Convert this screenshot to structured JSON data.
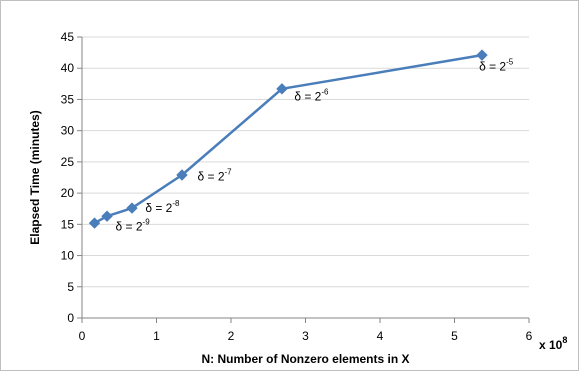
{
  "chart_data": {
    "type": "line",
    "title": "",
    "xlabel": "N: Number of Nonzero elements in X",
    "ylabel": "Elapsed Time (minutes)",
    "x_multiplier_label": "x 10",
    "x_multiplier_exp": "8",
    "xlim": [
      0,
      6
    ],
    "ylim": [
      0,
      45
    ],
    "x_ticks": [
      0,
      1,
      2,
      3,
      4,
      5,
      6
    ],
    "y_ticks": [
      0,
      5,
      10,
      15,
      20,
      25,
      30,
      35,
      40,
      45
    ],
    "grid": "horizontal",
    "legend": "none",
    "series": [
      {
        "color": "#4a7ebb",
        "marker": "diamond",
        "x": [
          0.168,
          0.336,
          0.671,
          1.342,
          2.684,
          5.369
        ],
        "y": [
          15.2,
          16.3,
          17.6,
          22.9,
          36.7,
          42.1
        ]
      }
    ],
    "annotations": [
      {
        "base": "δ = 2",
        "exp": "-9",
        "x": 0.45,
        "y": 14.0
      },
      {
        "base": "δ = 2",
        "exp": "-8",
        "x": 0.85,
        "y": 17.0
      },
      {
        "base": "δ = 2",
        "exp": "-7",
        "x": 1.55,
        "y": 22.0
      },
      {
        "base": "δ = 2",
        "exp": "-6",
        "x": 2.85,
        "y": 34.8
      },
      {
        "base": "δ = 2",
        "exp": "-5",
        "x": 5.33,
        "y": 39.6
      }
    ]
  }
}
